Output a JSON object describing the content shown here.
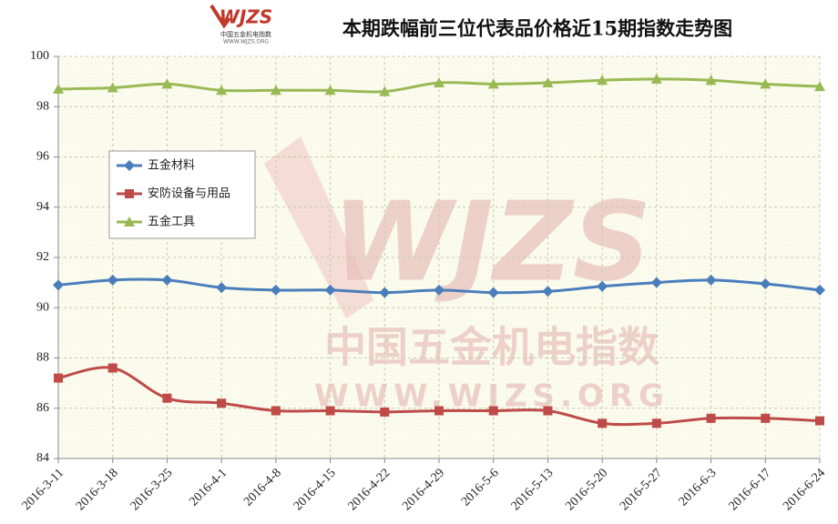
{
  "logo": {
    "text": "WJZS",
    "subtext": "中国五金机电指数",
    "url": "WWW.WJZS.ORG"
  },
  "chart_data": {
    "type": "line",
    "title": "本期跌幅前三位代表品价格近15期指数走势图",
    "watermark": {
      "text": "WJZS",
      "subtext": "中国五金机电指数",
      "url": "WWW.WJZS.ORG"
    },
    "categories": [
      "2016-3-11",
      "2016-3-18",
      "2016-3-25",
      "2016-4-1",
      "2016-4-8",
      "2016-4-15",
      "2016-4-22",
      "2016-4-29",
      "2016-5-6",
      "2016-5-13",
      "2016-5-20",
      "2016-5-27",
      "2016-6-3",
      "2016-6-17",
      "2016-6-24"
    ],
    "series": [
      {
        "name": "五金材料",
        "color": "#4a7ebb",
        "marker": "diamond",
        "values": [
          90.9,
          91.1,
          91.1,
          90.8,
          90.7,
          90.7,
          90.6,
          90.7,
          90.6,
          90.65,
          90.85,
          91.0,
          91.1,
          90.95,
          90.7
        ]
      },
      {
        "name": "安防设备与用品",
        "color": "#be4b48",
        "marker": "square",
        "values": [
          87.2,
          87.6,
          86.4,
          86.2,
          85.9,
          85.9,
          85.85,
          85.9,
          85.9,
          85.9,
          85.4,
          85.4,
          85.6,
          85.6,
          85.5
        ]
      },
      {
        "name": "五金工具",
        "color": "#98b954",
        "marker": "triangle",
        "values": [
          98.7,
          98.75,
          98.9,
          98.65,
          98.65,
          98.65,
          98.6,
          98.95,
          98.9,
          98.95,
          99.05,
          99.1,
          99.05,
          98.9,
          98.8
        ]
      }
    ],
    "ylim": [
      84,
      100
    ],
    "yticks": [
      84,
      86,
      88,
      90,
      92,
      94,
      96,
      98,
      100
    ],
    "grid": true
  }
}
